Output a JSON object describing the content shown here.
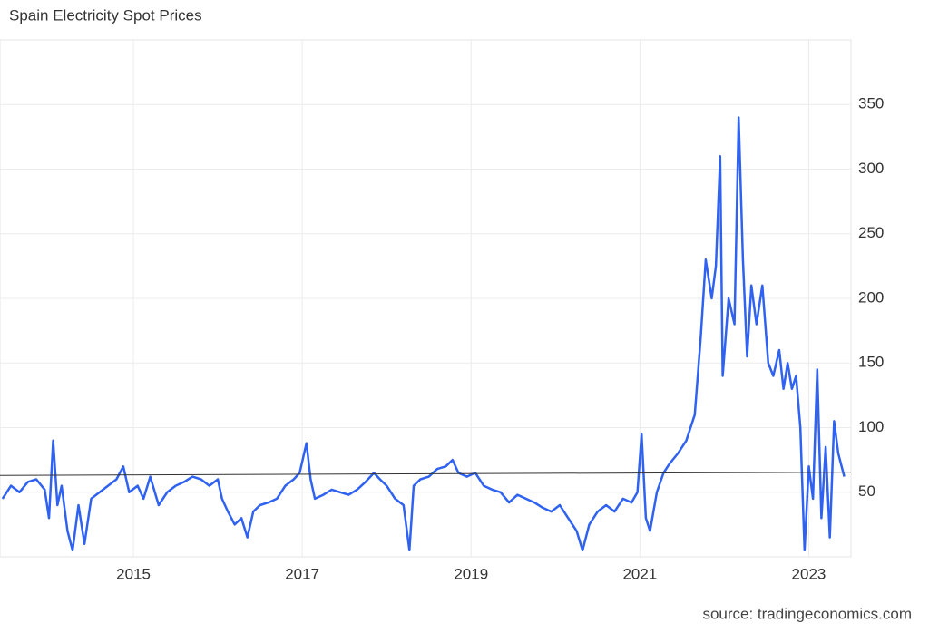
{
  "chart_data": {
    "type": "line",
    "title": "Spain Electricity Spot Prices",
    "source": "source: tradingeconomics.com",
    "x": [
      2013.45,
      2013.55,
      2013.65,
      2013.75,
      2013.85,
      2013.95,
      2014.0,
      2014.05,
      2014.1,
      2014.15,
      2014.22,
      2014.28,
      2014.35,
      2014.42,
      2014.5,
      2014.6,
      2014.7,
      2014.8,
      2014.88,
      2014.95,
      2015.05,
      2015.12,
      2015.2,
      2015.3,
      2015.4,
      2015.5,
      2015.6,
      2015.7,
      2015.8,
      2015.9,
      2016.0,
      2016.05,
      2016.12,
      2016.2,
      2016.28,
      2016.35,
      2016.42,
      2016.5,
      2016.6,
      2016.7,
      2016.8,
      2016.9,
      2016.97,
      2017.05,
      2017.1,
      2017.15,
      2017.25,
      2017.35,
      2017.45,
      2017.55,
      2017.65,
      2017.75,
      2017.85,
      2017.92,
      2018.0,
      2018.1,
      2018.2,
      2018.27,
      2018.32,
      2018.4,
      2018.5,
      2018.6,
      2018.7,
      2018.78,
      2018.85,
      2018.95,
      2019.05,
      2019.15,
      2019.25,
      2019.35,
      2019.45,
      2019.55,
      2019.65,
      2019.75,
      2019.85,
      2019.95,
      2020.05,
      2020.15,
      2020.25,
      2020.32,
      2020.4,
      2020.5,
      2020.6,
      2020.7,
      2020.8,
      2020.9,
      2020.97,
      2021.02,
      2021.07,
      2021.12,
      2021.2,
      2021.28,
      2021.35,
      2021.45,
      2021.55,
      2021.65,
      2021.72,
      2021.78,
      2021.85,
      2021.9,
      2021.95,
      2021.98,
      2022.05,
      2022.12,
      2022.17,
      2022.22,
      2022.27,
      2022.32,
      2022.38,
      2022.45,
      2022.52,
      2022.58,
      2022.65,
      2022.7,
      2022.75,
      2022.8,
      2022.85,
      2022.9,
      2022.95,
      2023.0,
      2023.05,
      2023.1,
      2023.15,
      2023.2,
      2023.25,
      2023.3,
      2023.35,
      2023.42
    ],
    "series": [
      {
        "color": "#2f62f0",
        "values": [
          45,
          55,
          50,
          58,
          60,
          52,
          30,
          90,
          40,
          55,
          20,
          5,
          40,
          10,
          45,
          50,
          55,
          60,
          70,
          50,
          55,
          45,
          62,
          40,
          50,
          55,
          58,
          62,
          60,
          55,
          60,
          45,
          35,
          25,
          30,
          15,
          35,
          40,
          42,
          45,
          55,
          60,
          65,
          88,
          60,
          45,
          48,
          52,
          50,
          48,
          52,
          58,
          65,
          60,
          55,
          45,
          40,
          5,
          55,
          60,
          62,
          68,
          70,
          75,
          65,
          62,
          65,
          55,
          52,
          50,
          42,
          48,
          45,
          42,
          38,
          35,
          40,
          30,
          20,
          5,
          25,
          35,
          40,
          35,
          45,
          42,
          50,
          95,
          30,
          20,
          50,
          65,
          72,
          80,
          90,
          110,
          170,
          230,
          200,
          225,
          310,
          140,
          200,
          180,
          340,
          230,
          155,
          210,
          180,
          210,
          150,
          140,
          160,
          130,
          150,
          130,
          140,
          100,
          5,
          70,
          45,
          145,
          30,
          85,
          15,
          105,
          80,
          62
        ]
      }
    ],
    "reference_line": {
      "values": [
        63,
        65.5
      ],
      "color": "#333333"
    },
    "xlim": [
      2013.42,
      2023.5
    ],
    "xticks": [
      2015,
      2017,
      2019,
      2021,
      2023
    ],
    "ylim": [
      0,
      400
    ],
    "yticks": [
      50,
      100,
      150,
      200,
      250,
      300,
      350
    ],
    "grid": true
  }
}
